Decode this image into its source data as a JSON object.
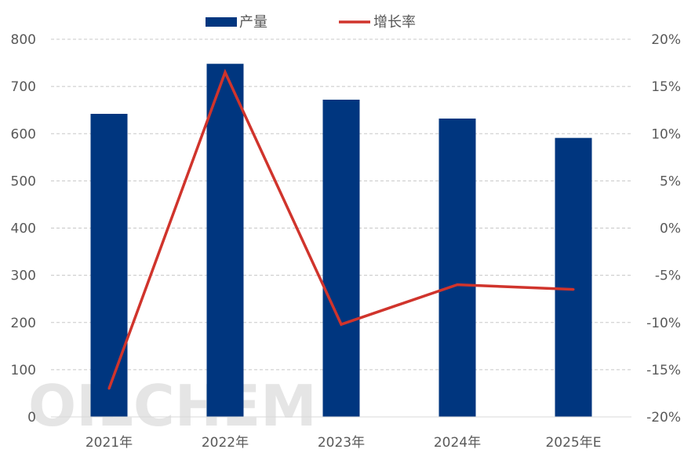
{
  "chart_data": {
    "type": "bar",
    "categories": [
      "2021年",
      "2022年",
      "2023年",
      "2024年",
      "2025年E"
    ],
    "series": [
      {
        "name": "产量",
        "type": "bar",
        "axis": "left",
        "color": "#00367f",
        "values": [
          642,
          748,
          672,
          632,
          591
        ]
      },
      {
        "name": "增长率",
        "type": "line",
        "axis": "right",
        "color": "#d0342c",
        "values": [
          -17.0,
          16.5,
          -10.2,
          -6.0,
          -6.5
        ]
      }
    ],
    "y_left": {
      "min": 0,
      "max": 800,
      "step": 100,
      "ticks": [
        "0",
        "100",
        "200",
        "300",
        "400",
        "500",
        "600",
        "700",
        "800"
      ]
    },
    "y_right": {
      "min": -20,
      "max": 20,
      "step": 5,
      "ticks": [
        "-20%",
        "-15%",
        "-10%",
        "-5%",
        "0%",
        "5%",
        "10%",
        "15%",
        "20%"
      ]
    },
    "grid": true,
    "legend_position": "top"
  },
  "watermark": "OILCHEM"
}
